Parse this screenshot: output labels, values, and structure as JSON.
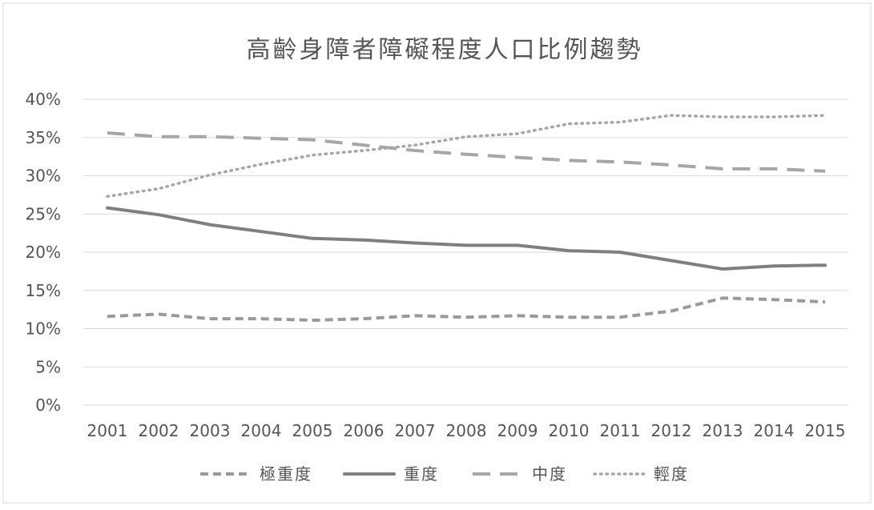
{
  "chart_data": {
    "type": "line",
    "title": "高齡身障者障礙程度人口比例趨勢",
    "xlabel": "",
    "ylabel": "",
    "categories": [
      "2001",
      "2002",
      "2003",
      "2004",
      "2005",
      "2006",
      "2007",
      "2008",
      "2009",
      "2010",
      "2011",
      "2012",
      "2013",
      "2014",
      "2015"
    ],
    "ylim": [
      0,
      40
    ],
    "yticks": [
      "0%",
      "5%",
      "10%",
      "15%",
      "20%",
      "25%",
      "30%",
      "35%",
      "40%"
    ],
    "ytick_values": [
      0,
      5,
      10,
      15,
      20,
      25,
      30,
      35,
      40
    ],
    "grid": true,
    "legend_position": "bottom",
    "series": [
      {
        "name": "極重度",
        "style": "short-dash",
        "color": "#9a9a9a",
        "values": [
          11.6,
          11.9,
          11.3,
          11.3,
          11.1,
          11.3,
          11.7,
          11.5,
          11.7,
          11.5,
          11.5,
          12.3,
          14.0,
          13.8,
          13.5
        ]
      },
      {
        "name": "重度",
        "style": "solid",
        "color": "#7f7f7f",
        "values": [
          25.8,
          24.9,
          23.6,
          22.7,
          21.8,
          21.6,
          21.2,
          20.9,
          20.9,
          20.2,
          20.0,
          18.9,
          17.8,
          18.2,
          18.3
        ]
      },
      {
        "name": "中度",
        "style": "long-dash",
        "color": "#a6a6a6",
        "values": [
          35.6,
          35.1,
          35.1,
          34.9,
          34.7,
          34.0,
          33.3,
          32.8,
          32.4,
          32.0,
          31.8,
          31.4,
          30.9,
          30.9,
          30.6
        ]
      },
      {
        "name": "輕度",
        "style": "dotted",
        "color": "#a6a6a6",
        "values": [
          27.3,
          28.3,
          30.1,
          31.5,
          32.7,
          33.3,
          34.0,
          35.1,
          35.5,
          36.8,
          37.0,
          37.9,
          37.7,
          37.7,
          37.9
        ]
      }
    ]
  }
}
